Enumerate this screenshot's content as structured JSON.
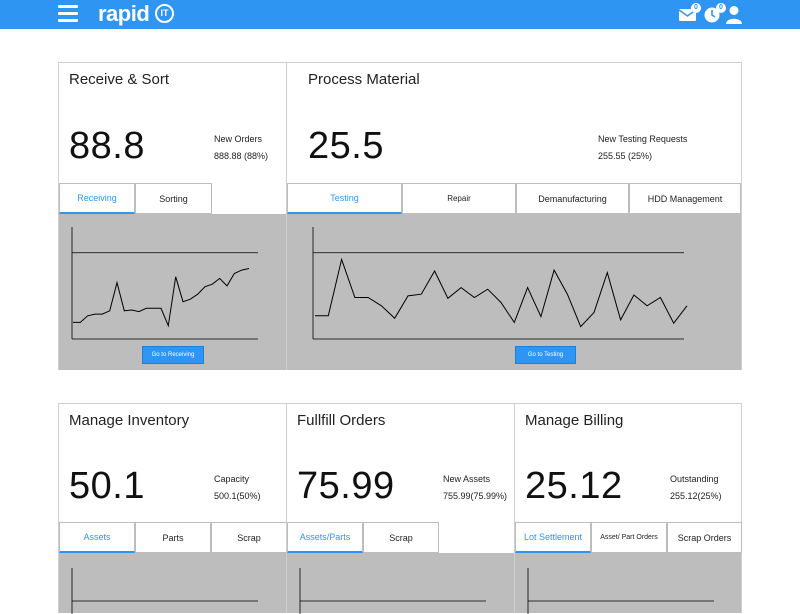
{
  "header": {
    "logo_text": "rapid",
    "logo_badge": "IT",
    "icons": [
      {
        "name": "mail-icon",
        "badge": "0"
      },
      {
        "name": "clock-icon",
        "badge": "0"
      },
      {
        "name": "user-icon"
      }
    ]
  },
  "cards": {
    "receive": {
      "title": "Receive & Sort",
      "value": "88.8",
      "meta_label": "New Orders",
      "meta_value": "888.88 (88%)",
      "tabs": [
        "Receiving",
        "Sorting"
      ],
      "button": "Go to Receiving"
    },
    "process": {
      "title": "Process Material",
      "value": "25.5",
      "meta_label": "New Testing Requests",
      "meta_value": "255.55 (25%)",
      "tabs": [
        "Testing",
        "Repair",
        "Demanufacturing",
        "HDD Management"
      ],
      "button": "Go to Testing"
    },
    "inventory": {
      "title": "Manage Inventory",
      "value": "50.1",
      "meta_label": "Capacity",
      "meta_value": "500.1(50%)",
      "tabs": [
        "Assets",
        "Parts",
        "Scrap"
      ]
    },
    "orders": {
      "title": "Fullfill Orders",
      "value": "75.99",
      "meta_label": "New Assets",
      "meta_value": "755.99(75.99%)",
      "tabs": [
        "Assets/Parts",
        "Scrap"
      ]
    },
    "billing": {
      "title": "Manage Billing",
      "value": "25.12",
      "meta_label": "Outstanding",
      "meta_value": "255.12(25%)",
      "tabs": [
        "Lot Settlement",
        "Asset/ Part Orders",
        "Scrap Orders"
      ]
    }
  },
  "chart_data": [
    {
      "type": "line",
      "values": [
        0,
        0,
        8,
        10,
        10,
        14,
        48,
        14,
        15,
        13,
        17,
        17,
        17,
        -4,
        55,
        25,
        28,
        34,
        43,
        46,
        53,
        44,
        59,
        63,
        65
      ],
      "ylim": [
        -20,
        115
      ],
      "reference_line": 84
    },
    {
      "type": "line",
      "values": [
        8,
        8,
        76,
        30,
        30,
        20,
        5,
        32,
        34,
        62,
        29,
        42,
        30,
        40,
        24,
        0,
        42,
        7,
        63,
        34,
        -5,
        12,
        60,
        3,
        33,
        20,
        30,
        -1,
        20
      ],
      "ylim": [
        -20,
        115
      ],
      "reference_line": 84
    }
  ]
}
